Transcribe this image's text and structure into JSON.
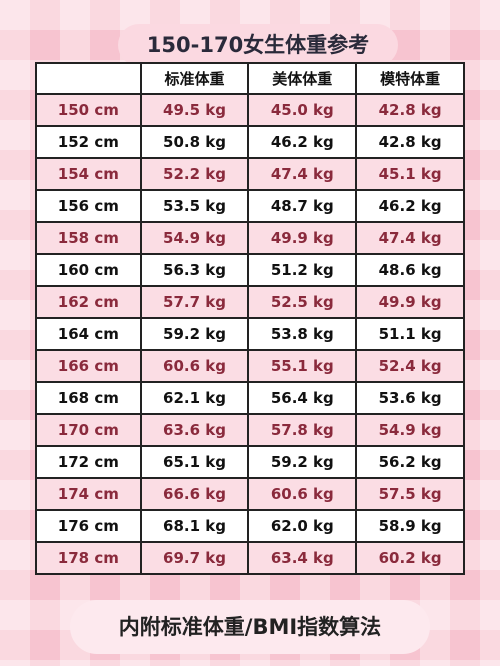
{
  "header": {
    "title": "150-170女生体重参考"
  },
  "table": {
    "columns": [
      "",
      "标准体重",
      "美体体重",
      "模特体重"
    ],
    "rows": [
      [
        "150 cm",
        "49.5 kg",
        "45.0 kg",
        "42.8 kg"
      ],
      [
        "152 cm",
        "50.8 kg",
        "46.2 kg",
        "42.8 kg"
      ],
      [
        "154 cm",
        "52.2 kg",
        "47.4 kg",
        "45.1 kg"
      ],
      [
        "156 cm",
        "53.5 kg",
        "48.7 kg",
        "46.2 kg"
      ],
      [
        "158 cm",
        "54.9 kg",
        "49.9 kg",
        "47.4 kg"
      ],
      [
        "160 cm",
        "56.3 kg",
        "51.2 kg",
        "48.6 kg"
      ],
      [
        "162 cm",
        "57.7 kg",
        "52.5 kg",
        "49.9 kg"
      ],
      [
        "164 cm",
        "59.2 kg",
        "53.8 kg",
        "51.1 kg"
      ],
      [
        "166 cm",
        "60.6 kg",
        "55.1 kg",
        "52.4 kg"
      ],
      [
        "168 cm",
        "62.1 kg",
        "56.4 kg",
        "53.6 kg"
      ],
      [
        "170 cm",
        "63.6 kg",
        "57.8 kg",
        "54.9 kg"
      ],
      [
        "172 cm",
        "65.1 kg",
        "59.2 kg",
        "56.2 kg"
      ],
      [
        "174 cm",
        "66.6 kg",
        "60.6 kg",
        "57.5 kg"
      ],
      [
        "176 cm",
        "68.1 kg",
        "62.0 kg",
        "58.9 kg"
      ],
      [
        "178 cm",
        "69.7 kg",
        "63.4 kg",
        "60.2 kg"
      ]
    ]
  },
  "footer": {
    "text": "内附标准体重/BMI指数算法"
  }
}
